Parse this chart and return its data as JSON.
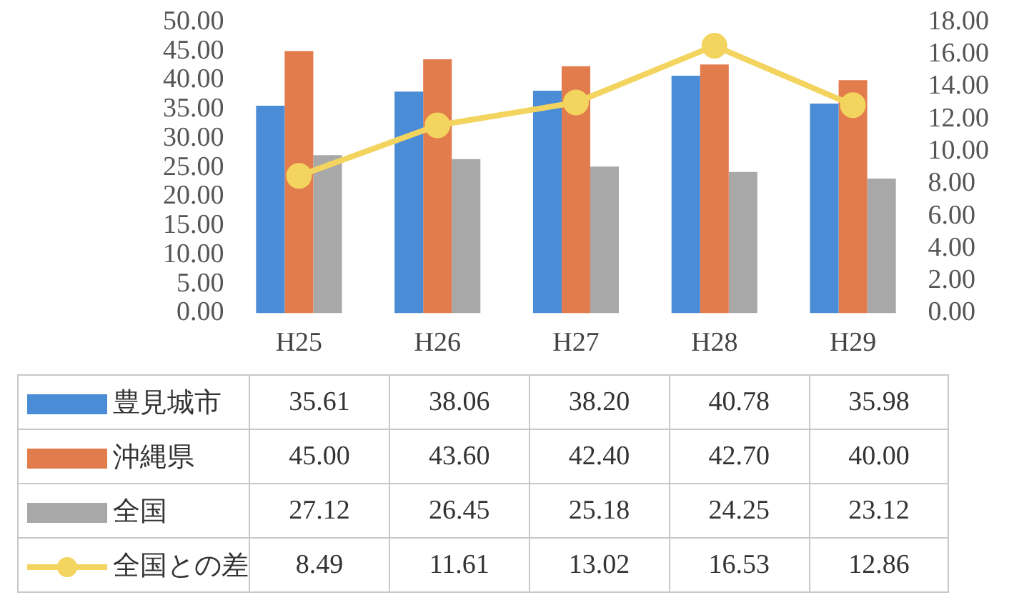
{
  "chart_data": {
    "type": "bar",
    "categories": [
      "H25",
      "H26",
      "H27",
      "H28",
      "H29"
    ],
    "series": [
      {
        "name": "豊見城市",
        "color": "#4a8cd6",
        "values": [
          35.61,
          38.06,
          38.2,
          40.78,
          35.98
        ],
        "value_labels": [
          "35.61",
          "38.06",
          "38.20",
          "40.78",
          "35.98"
        ]
      },
      {
        "name": "沖縄県",
        "color": "#e27c4c",
        "values": [
          45.0,
          43.6,
          42.4,
          42.7,
          40.0
        ],
        "value_labels": [
          "45.00",
          "43.60",
          "42.40",
          "42.70",
          "40.00"
        ]
      },
      {
        "name": "全国",
        "color": "#a8a8a8",
        "values": [
          27.12,
          26.45,
          25.18,
          24.25,
          23.12
        ],
        "value_labels": [
          "27.12",
          "26.45",
          "25.18",
          "24.25",
          "23.12"
        ]
      },
      {
        "name": "全国との差",
        "type": "line",
        "axis": "y2",
        "color": "#f3d45e",
        "values": [
          8.49,
          11.61,
          13.02,
          16.53,
          12.86
        ],
        "value_labels": [
          "8.49",
          "11.61",
          "13.02",
          "16.53",
          "12.86"
        ]
      }
    ],
    "ylim": [
      0,
      50
    ],
    "yticks": [
      {
        "value": 0,
        "label": "0.00"
      },
      {
        "value": 5,
        "label": "5.00"
      },
      {
        "value": 10,
        "label": "10.00"
      },
      {
        "value": 15,
        "label": "15.00"
      },
      {
        "value": 20,
        "label": "20.00"
      },
      {
        "value": 25,
        "label": "25.00"
      },
      {
        "value": 30,
        "label": "30.00"
      },
      {
        "value": 35,
        "label": "35.00"
      },
      {
        "value": 40,
        "label": "40.00"
      },
      {
        "value": 45,
        "label": "45.00"
      },
      {
        "value": 50,
        "label": "50.00"
      }
    ],
    "y2lim": [
      0,
      18
    ],
    "y2ticks": [
      {
        "value": 0,
        "label": "0.00"
      },
      {
        "value": 2,
        "label": "2.00"
      },
      {
        "value": 4,
        "label": "4.00"
      },
      {
        "value": 6,
        "label": "6.00"
      },
      {
        "value": 8,
        "label": "8.00"
      },
      {
        "value": 10,
        "label": "10.00"
      },
      {
        "value": 12,
        "label": "12.00"
      },
      {
        "value": 14,
        "label": "14.00"
      },
      {
        "value": 16,
        "label": "16.00"
      },
      {
        "value": 18,
        "label": "18.00"
      }
    ],
    "grid": false,
    "legend": "bottom",
    "marker": "circle"
  }
}
